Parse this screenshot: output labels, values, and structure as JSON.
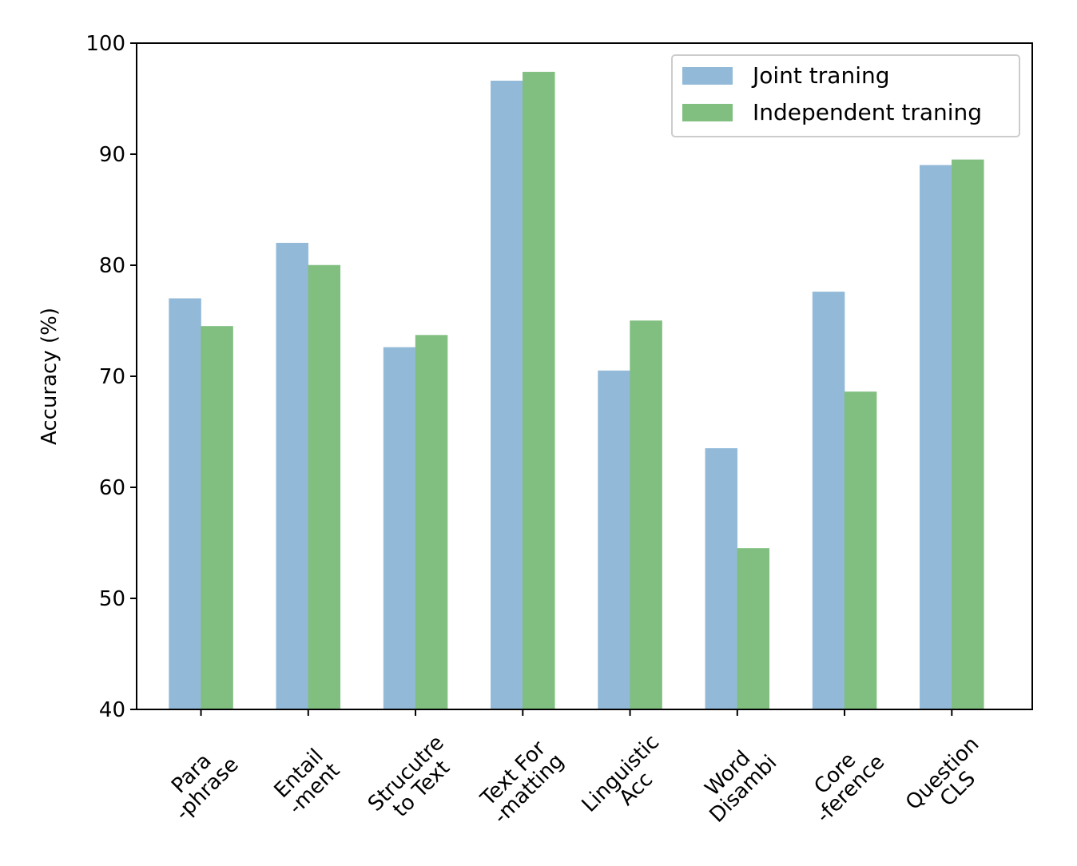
{
  "chart_data": {
    "type": "bar",
    "title": "",
    "xlabel": "",
    "ylabel": "Accuracy (%)",
    "ylim": [
      40,
      100
    ],
    "yticks": [
      40,
      50,
      60,
      70,
      80,
      90,
      100
    ],
    "grid": false,
    "legend_position": "top-right",
    "categories": [
      [
        "Para",
        "-phrase"
      ],
      [
        "Entail",
        "-ment"
      ],
      [
        "Strucutre",
        "to Text"
      ],
      [
        "Text For",
        "-matting"
      ],
      [
        "Linguistic",
        "Acc"
      ],
      [
        "Word",
        "Disambi"
      ],
      [
        "Core",
        "-ference"
      ],
      [
        "Question",
        "CLS"
      ]
    ],
    "series": [
      {
        "name": "Joint traning",
        "color": "#92bad8",
        "values": [
          77.0,
          82.0,
          72.6,
          96.6,
          70.5,
          63.5,
          77.6,
          89.0
        ]
      },
      {
        "name": "Independent traning",
        "color": "#80bf80",
        "values": [
          74.5,
          80.0,
          73.7,
          97.4,
          75.0,
          54.5,
          68.6,
          89.5
        ]
      }
    ]
  }
}
